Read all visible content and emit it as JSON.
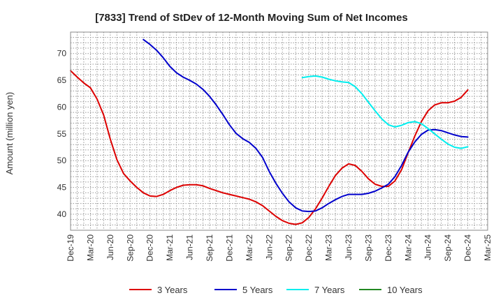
{
  "chart_data": {
    "type": "line",
    "title": "[7833]  Trend of StDev of 12-Month Moving Sum of Net Incomes",
    "ylabel": "Amount (million yen)",
    "xlabel": "",
    "ylim": [
      37,
      74
    ],
    "yticks": [
      40,
      45,
      50,
      55,
      60,
      65,
      70
    ],
    "xlim": [
      "2019-12",
      "2025-03"
    ],
    "xticks": [
      "Dec-19",
      "Mar-20",
      "Jun-20",
      "Sep-20",
      "Dec-20",
      "Mar-21",
      "Jun-21",
      "Sep-21",
      "Dec-21",
      "Mar-22",
      "Jun-22",
      "Sep-22",
      "Dec-22",
      "Mar-23",
      "Jun-23",
      "Sep-23",
      "Dec-23",
      "Mar-24",
      "Jun-24",
      "Sep-24",
      "Dec-24",
      "Mar-25"
    ],
    "grid": true,
    "legend_position": "bottom",
    "series": [
      {
        "name": "3 Years",
        "color": "#dd0000",
        "points": [
          [
            "2019-12",
            66.8
          ],
          [
            "2020-01",
            65.6
          ],
          [
            "2020-02",
            64.5
          ],
          [
            "2020-03",
            63.6
          ],
          [
            "2020-04",
            61.5
          ],
          [
            "2020-05",
            58.5
          ],
          [
            "2020-06",
            54.0
          ],
          [
            "2020-07",
            50.2
          ],
          [
            "2020-08",
            47.6
          ],
          [
            "2020-09",
            46.2
          ],
          [
            "2020-10",
            45.0
          ],
          [
            "2020-11",
            44.0
          ],
          [
            "2020-12",
            43.4
          ],
          [
            "2021-01",
            43.3
          ],
          [
            "2021-02",
            43.7
          ],
          [
            "2021-03",
            44.4
          ],
          [
            "2021-04",
            45.0
          ],
          [
            "2021-05",
            45.4
          ],
          [
            "2021-06",
            45.5
          ],
          [
            "2021-07",
            45.5
          ],
          [
            "2021-08",
            45.3
          ],
          [
            "2021-09",
            44.8
          ],
          [
            "2021-10",
            44.4
          ],
          [
            "2021-11",
            44.0
          ],
          [
            "2021-12",
            43.7
          ],
          [
            "2021-12",
            43.7
          ],
          [
            "2022-01",
            43.4
          ],
          [
            "2022-02",
            43.1
          ],
          [
            "2022-03",
            42.8
          ],
          [
            "2022-04",
            42.3
          ],
          [
            "2022-05",
            41.6
          ],
          [
            "2022-06",
            40.6
          ],
          [
            "2022-07",
            39.6
          ],
          [
            "2022-08",
            38.8
          ],
          [
            "2022-09",
            38.3
          ],
          [
            "2022-10",
            38.1
          ],
          [
            "2022-11",
            38.4
          ],
          [
            "2022-12",
            39.4
          ],
          [
            "2023-01",
            41.0
          ],
          [
            "2023-02",
            43.0
          ],
          [
            "2023-03",
            45.2
          ],
          [
            "2023-04",
            47.2
          ],
          [
            "2023-05",
            48.6
          ],
          [
            "2023-06",
            49.4
          ],
          [
            "2023-07",
            49.1
          ],
          [
            "2023-08",
            48.0
          ],
          [
            "2023-09",
            46.6
          ],
          [
            "2023-10",
            45.6
          ],
          [
            "2023-11",
            45.2
          ],
          [
            "2023-12",
            45.2
          ],
          [
            "2024-01",
            46.2
          ],
          [
            "2024-02",
            48.3
          ],
          [
            "2024-03",
            51.5
          ],
          [
            "2024-04",
            54.6
          ],
          [
            "2024-05",
            57.3
          ],
          [
            "2024-06",
            59.3
          ],
          [
            "2024-07",
            60.4
          ],
          [
            "2024-08",
            60.8
          ],
          [
            "2024-09",
            60.8
          ],
          [
            "2024-10",
            61.1
          ],
          [
            "2024-11",
            61.8
          ],
          [
            "2024-12",
            63.2
          ]
        ]
      },
      {
        "name": "5 Years",
        "color": "#0000cc",
        "points": [
          [
            "2020-11",
            72.6
          ],
          [
            "2020-12",
            71.7
          ],
          [
            "2021-01",
            70.6
          ],
          [
            "2021-02",
            69.2
          ],
          [
            "2021-03",
            67.6
          ],
          [
            "2021-04",
            66.4
          ],
          [
            "2021-05",
            65.6
          ],
          [
            "2021-06",
            65.0
          ],
          [
            "2021-07",
            64.3
          ],
          [
            "2021-08",
            63.3
          ],
          [
            "2021-09",
            62.0
          ],
          [
            "2021-10",
            60.4
          ],
          [
            "2021-11",
            58.6
          ],
          [
            "2021-12",
            56.7
          ],
          [
            "2022-01",
            55.1
          ],
          [
            "2022-02",
            54.1
          ],
          [
            "2022-03",
            53.4
          ],
          [
            "2022-04",
            52.3
          ],
          [
            "2022-05",
            50.6
          ],
          [
            "2022-06",
            48.0
          ],
          [
            "2022-07",
            45.8
          ],
          [
            "2022-08",
            43.9
          ],
          [
            "2022-09",
            42.3
          ],
          [
            "2022-10",
            41.2
          ],
          [
            "2022-11",
            40.6
          ],
          [
            "2022-12",
            40.5
          ],
          [
            "2023-01",
            40.6
          ],
          [
            "2023-02",
            41.2
          ],
          [
            "2023-03",
            42.0
          ],
          [
            "2023-04",
            42.7
          ],
          [
            "2023-05",
            43.3
          ],
          [
            "2023-06",
            43.7
          ],
          [
            "2023-07",
            43.7
          ],
          [
            "2023-08",
            43.7
          ],
          [
            "2023-09",
            43.9
          ],
          [
            "2023-10",
            44.3
          ],
          [
            "2023-11",
            44.9
          ],
          [
            "2023-12",
            45.6
          ],
          [
            "2024-01",
            47.0
          ],
          [
            "2024-02",
            49.1
          ],
          [
            "2024-03",
            51.6
          ],
          [
            "2024-04",
            53.5
          ],
          [
            "2024-05",
            54.9
          ],
          [
            "2024-06",
            55.7
          ],
          [
            "2024-07",
            55.8
          ],
          [
            "2024-08",
            55.6
          ],
          [
            "2024-09",
            55.2
          ],
          [
            "2024-10",
            54.8
          ],
          [
            "2024-11",
            54.5
          ],
          [
            "2024-12",
            54.4
          ]
        ]
      },
      {
        "name": "7 Years",
        "color": "#00eeee",
        "points": [
          [
            "2022-11",
            65.5
          ],
          [
            "2022-12",
            65.7
          ],
          [
            "2023-01",
            65.8
          ],
          [
            "2023-02",
            65.6
          ],
          [
            "2023-03",
            65.2
          ],
          [
            "2023-04",
            64.9
          ],
          [
            "2023-05",
            64.7
          ],
          [
            "2023-06",
            64.6
          ],
          [
            "2023-07",
            63.8
          ],
          [
            "2023-08",
            62.5
          ],
          [
            "2023-09",
            60.9
          ],
          [
            "2023-10",
            59.3
          ],
          [
            "2023-11",
            57.8
          ],
          [
            "2023-12",
            56.7
          ],
          [
            "2024-01",
            56.3
          ],
          [
            "2024-02",
            56.6
          ],
          [
            "2024-03",
            57.1
          ],
          [
            "2024-04",
            57.3
          ],
          [
            "2024-05",
            56.9
          ],
          [
            "2024-06",
            56.0
          ],
          [
            "2024-07",
            55.0
          ],
          [
            "2024-08",
            54.0
          ],
          [
            "2024-09",
            53.1
          ],
          [
            "2024-10",
            52.5
          ],
          [
            "2024-11",
            52.3
          ],
          [
            "2024-12",
            52.6
          ]
        ]
      },
      {
        "name": "10 Years",
        "color": "#228822",
        "points": []
      }
    ]
  }
}
